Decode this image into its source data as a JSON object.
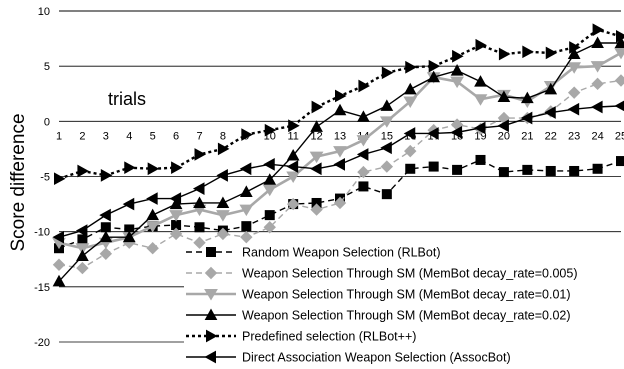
{
  "chart_data": {
    "type": "line",
    "title": "",
    "xlabel": "",
    "ylabel": "Score difference",
    "annotation": "trials",
    "x": [
      1,
      2,
      3,
      4,
      5,
      6,
      7,
      8,
      9,
      10,
      11,
      12,
      13,
      14,
      15,
      16,
      17,
      18,
      19,
      20,
      21,
      22,
      23,
      24,
      25
    ],
    "ylim": [
      -20,
      10
    ],
    "yticks": [
      -20,
      -15,
      -10,
      -5,
      0,
      5,
      10
    ],
    "grid": "horizontal",
    "legend_position": "bottom-right",
    "series": [
      {
        "name": "Random Weapon Selection (RLBot)",
        "color": "#000000",
        "dash": "dashed",
        "marker": "square",
        "values": [
          -11.5,
          -10.7,
          -9.6,
          -9.8,
          -9.5,
          -9.4,
          -9.6,
          -9.9,
          -9.5,
          -8.5,
          -7.5,
          -7.4,
          -7.0,
          -5.9,
          -6.6,
          -4.3,
          -4.1,
          -4.4,
          -3.5,
          -4.6,
          -4.4,
          -4.5,
          -4.5,
          -4.3,
          -3.6
        ]
      },
      {
        "name": "Weapon Selection Through SM (MemBot decay_rate=0.005)",
        "color": "#a8a8a8",
        "dash": "dashed",
        "marker": "diamond",
        "values": [
          -13.0,
          -13.3,
          -12.0,
          -11.0,
          -11.5,
          -10.2,
          -11.0,
          -10.2,
          -10.5,
          -9.6,
          -7.5,
          -8.0,
          -7.4,
          -4.6,
          -4.1,
          -2.7,
          -0.8,
          -0.3,
          -0.7,
          0.3,
          0.3,
          0.9,
          2.6,
          3.4,
          3.7
        ]
      },
      {
        "name": "Weapon Selection Through SM (MemBot decay_rate=0.01)",
        "color": "#a8a8a8",
        "dash": "solid",
        "marker": "triangle-down",
        "values": [
          -11.0,
          -11.5,
          -11.0,
          -10.5,
          -9.5,
          -8.5,
          -8.0,
          -8.5,
          -8.0,
          -6.2,
          -5.0,
          -3.2,
          -2.7,
          -1.7,
          0.0,
          1.8,
          4.0,
          3.6,
          2.0,
          2.4,
          1.8,
          3.2,
          4.9,
          5.0,
          6.2
        ]
      },
      {
        "name": "Weapon Selection Through SM (MemBot decay_rate=0.02)",
        "color": "#000000",
        "dash": "solid",
        "marker": "triangle-up",
        "values": [
          -14.5,
          -12.2,
          -10.5,
          -10.5,
          -8.5,
          -7.5,
          -7.4,
          -7.4,
          -6.4,
          -5.3,
          -3.1,
          -0.5,
          1.0,
          0.4,
          1.4,
          2.9,
          4.0,
          4.6,
          3.6,
          2.2,
          2.1,
          2.9,
          6.1,
          7.1,
          7.1
        ]
      },
      {
        "name": "Predefined selection (RLBot++)",
        "color": "#000000",
        "dash": "dotted",
        "marker": "triangle-right",
        "values": [
          -5.2,
          -4.5,
          -4.9,
          -4.2,
          -4.3,
          -4.2,
          -3.0,
          -2.5,
          -1.2,
          -0.8,
          -0.4,
          1.3,
          2.3,
          3.2,
          4.4,
          4.9,
          5.0,
          5.9,
          6.9,
          6.1,
          6.3,
          6.2,
          6.7,
          8.3,
          7.7
        ]
      },
      {
        "name": "Direct Association Weapon Selection (AssocBot)",
        "color": "#000000",
        "dash": "solid",
        "marker": "triangle-left",
        "values": [
          -10.5,
          -9.9,
          -8.5,
          -7.5,
          -7.0,
          -7.0,
          -6.1,
          -4.9,
          -4.3,
          -3.9,
          -4.1,
          -4.3,
          -3.9,
          -3.0,
          -2.4,
          -1.1,
          -1.1,
          -1.0,
          -0.6,
          -0.4,
          0.3,
          0.8,
          1.1,
          1.3,
          1.4
        ]
      }
    ]
  }
}
